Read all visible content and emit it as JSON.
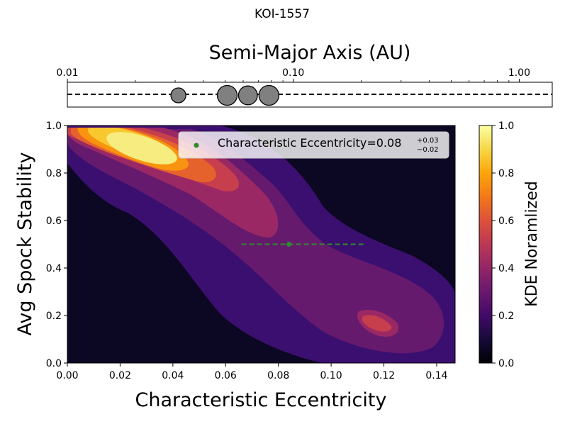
{
  "figure": {
    "title": "KOI-1557"
  },
  "chart_data": [
    {
      "type": "scatter",
      "panel": "top",
      "xlabel": "Semi-Major Axis (AU)",
      "xscale": "log",
      "xlim": [
        0.01,
        1.4
      ],
      "xtick_values": [
        0.01,
        0.1,
        1.0
      ],
      "xtick_labels": [
        "0.01",
        "0.10",
        "1.00"
      ],
      "marker_color": "#808080",
      "points": [
        {
          "a": 0.031,
          "relative_size": 0.75
        },
        {
          "a": 0.051,
          "relative_size": 1.0
        },
        {
          "a": 0.063,
          "relative_size": 0.95
        },
        {
          "a": 0.078,
          "relative_size": 1.0
        }
      ],
      "line_style": "dashed"
    },
    {
      "type": "heatmap",
      "panel": "main",
      "xlabel": "Characteristic Eccentricity",
      "ylabel": "Avg Spock Stability",
      "xlim": [
        0.0,
        0.147
      ],
      "ylim": [
        0.0,
        1.0
      ],
      "xtick_labels": [
        "0.00",
        "0.02",
        "0.04",
        "0.06",
        "0.08",
        "0.10",
        "0.12",
        "0.14"
      ],
      "ytick_labels": [
        "0.0",
        "0.2",
        "0.4",
        "0.6",
        "0.8",
        "1.0"
      ],
      "colormap": "inferno",
      "colorbar": {
        "label": "KDE Noramlized",
        "range": [
          0.0,
          1.0
        ],
        "tick_labels": [
          "0.0",
          "0.2",
          "0.4",
          "0.6",
          "0.8",
          "1.0"
        ]
      },
      "density_peaks": [
        {
          "x": 0.027,
          "y": 0.94,
          "value": 1.0
        },
        {
          "x": 0.118,
          "y": 0.18,
          "value": 0.5
        }
      ],
      "estimate": {
        "x": 0.084,
        "y": 0.5,
        "x_low": 0.066,
        "x_high": 0.113,
        "color": "#2e8b2e",
        "legend_text": "Characteristic Eccentricity=0.08",
        "legend_sup": "+0.03",
        "legend_sub": "−0.02"
      },
      "legend_position": "upper right"
    }
  ]
}
